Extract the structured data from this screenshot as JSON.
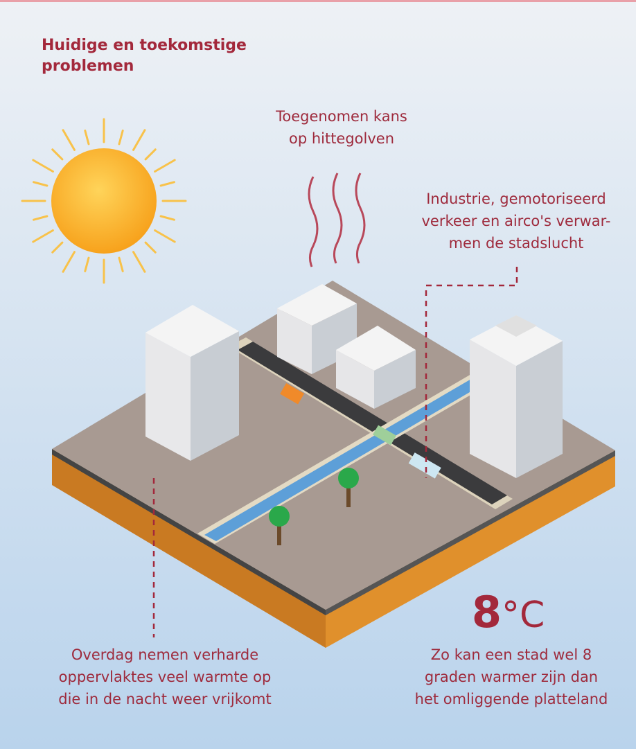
{
  "title": [
    "Huidige en toekomstige",
    "problemen"
  ],
  "annotations": {
    "heat_waves": [
      "Toegenomen kans",
      "op hittegolven"
    ],
    "industry": [
      "Industrie, gemotoriseerd",
      "verkeer en airco's verwar-",
      "men de stadslucht"
    ],
    "surfaces": [
      "Overdag nemen verharde",
      "oppervlaktes veel warmte op",
      "die in de nacht weer vrijkomt"
    ],
    "warmer": [
      "Zo kan een stad wel 8",
      "graden warmer zijn dan",
      "het omliggende platteland"
    ]
  },
  "figure": {
    "number": "8",
    "unit": "°C"
  }
}
